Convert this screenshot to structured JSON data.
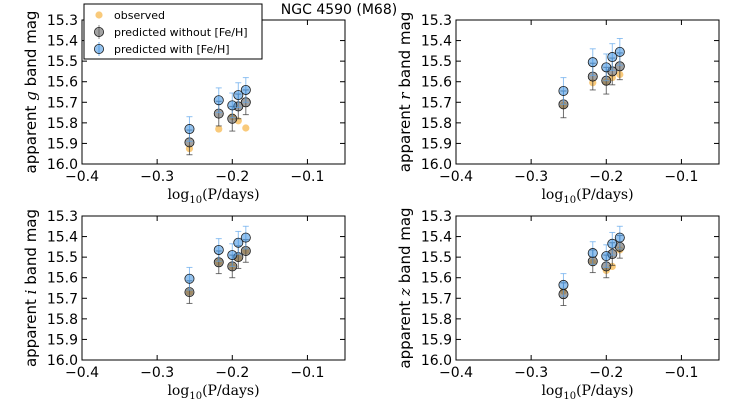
{
  "chart_data": {
    "title": "NGC 4590 (M68)",
    "type": "scatter",
    "xlabel": "log10(P/days)",
    "xlabel_parts": {
      "prefix": "log",
      "sub": "10",
      "suffix": "(P/days)"
    },
    "xlim": [
      -0.4,
      -0.05
    ],
    "ylim": [
      16.0,
      15.3
    ],
    "xticks": [
      -0.4,
      -0.3,
      -0.2,
      -0.1
    ],
    "xtick_labels": [
      "−0.4",
      "−0.3",
      "−0.2",
      "−0.1"
    ],
    "yticks": [
      15.3,
      15.4,
      15.5,
      15.6,
      15.7,
      15.8,
      15.9,
      16.0
    ],
    "ytick_labels": [
      "15.3",
      "15.4",
      "15.5",
      "15.6",
      "15.7",
      "15.8",
      "15.9",
      "16.0"
    ],
    "legend": {
      "location": "top-left",
      "entries": [
        {
          "name": "observed",
          "color": "#f5a623"
        },
        {
          "name": "predicted without [Fe/H]",
          "color": "#555555"
        },
        {
          "name": "predicted with [Fe/H]",
          "color": "#3c8fe0"
        }
      ]
    },
    "colors": {
      "observed": "#f5a623",
      "without": "#555555",
      "without_err": "#333333",
      "with": "#3c8fe0",
      "with_err": "#62a8ec"
    },
    "panels": [
      {
        "band": "g",
        "ylabel_prefix": "apparent ",
        "ylabel_band": "g",
        "ylabel_suffix": " band mag",
        "has_legend": true,
        "observed": [
          {
            "x": -0.257,
            "y": 15.925
          },
          {
            "x": -0.218,
            "y": 15.83
          },
          {
            "x": -0.2,
            "y": 15.77
          },
          {
            "x": -0.192,
            "y": 15.79
          },
          {
            "x": -0.182,
            "y": 15.825
          }
        ],
        "without": [
          {
            "x": -0.257,
            "y": 15.895,
            "err": 0.06
          },
          {
            "x": -0.218,
            "y": 15.755,
            "err": 0.06
          },
          {
            "x": -0.2,
            "y": 15.78,
            "err": 0.06
          },
          {
            "x": -0.192,
            "y": 15.72,
            "err": 0.06
          },
          {
            "x": -0.182,
            "y": 15.7,
            "err": 0.06
          }
        ],
        "with": [
          {
            "x": -0.257,
            "y": 15.83,
            "err": 0.06
          },
          {
            "x": -0.218,
            "y": 15.69,
            "err": 0.06
          },
          {
            "x": -0.2,
            "y": 15.715,
            "err": 0.06
          },
          {
            "x": -0.192,
            "y": 15.665,
            "err": 0.06
          },
          {
            "x": -0.182,
            "y": 15.64,
            "err": 0.06
          }
        ]
      },
      {
        "band": "r",
        "ylabel_prefix": "apparent ",
        "ylabel_band": "r",
        "ylabel_suffix": " band mag",
        "has_legend": false,
        "observed": [
          {
            "x": -0.257,
            "y": 15.715
          },
          {
            "x": -0.218,
            "y": 15.605
          },
          {
            "x": -0.2,
            "y": 15.6
          },
          {
            "x": -0.192,
            "y": 15.58
          },
          {
            "x": -0.182,
            "y": 15.565
          }
        ],
        "without": [
          {
            "x": -0.257,
            "y": 15.71,
            "err": 0.065
          },
          {
            "x": -0.218,
            "y": 15.575,
            "err": 0.065
          },
          {
            "x": -0.2,
            "y": 15.595,
            "err": 0.065
          },
          {
            "x": -0.192,
            "y": 15.55,
            "err": 0.065
          },
          {
            "x": -0.182,
            "y": 15.525,
            "err": 0.065
          }
        ],
        "with": [
          {
            "x": -0.257,
            "y": 15.645,
            "err": 0.065
          },
          {
            "x": -0.218,
            "y": 15.505,
            "err": 0.065
          },
          {
            "x": -0.2,
            "y": 15.53,
            "err": 0.065
          },
          {
            "x": -0.192,
            "y": 15.48,
            "err": 0.065
          },
          {
            "x": -0.182,
            "y": 15.455,
            "err": 0.065
          }
        ]
      },
      {
        "band": "i",
        "ylabel_prefix": "apparent ",
        "ylabel_band": "i",
        "ylabel_suffix": " band mag",
        "has_legend": false,
        "observed": [
          {
            "x": -0.257,
            "y": 15.67
          },
          {
            "x": -0.218,
            "y": 15.525
          },
          {
            "x": -0.2,
            "y": 15.545
          },
          {
            "x": -0.192,
            "y": 15.505
          },
          {
            "x": -0.182,
            "y": 15.47
          }
        ],
        "without": [
          {
            "x": -0.257,
            "y": 15.67,
            "err": 0.055
          },
          {
            "x": -0.218,
            "y": 15.525,
            "err": 0.055
          },
          {
            "x": -0.2,
            "y": 15.545,
            "err": 0.055
          },
          {
            "x": -0.192,
            "y": 15.5,
            "err": 0.055
          },
          {
            "x": -0.182,
            "y": 15.47,
            "err": 0.055
          }
        ],
        "with": [
          {
            "x": -0.257,
            "y": 15.605,
            "err": 0.055
          },
          {
            "x": -0.218,
            "y": 15.465,
            "err": 0.055
          },
          {
            "x": -0.2,
            "y": 15.49,
            "err": 0.055
          },
          {
            "x": -0.192,
            "y": 15.43,
            "err": 0.055
          },
          {
            "x": -0.182,
            "y": 15.405,
            "err": 0.055
          }
        ]
      },
      {
        "band": "z",
        "ylabel_prefix": "apparent ",
        "ylabel_band": "z",
        "ylabel_suffix": " band mag",
        "has_legend": false,
        "observed": [
          {
            "x": -0.257,
            "y": 15.665
          },
          {
            "x": -0.218,
            "y": 15.525
          },
          {
            "x": -0.2,
            "y": 15.565
          },
          {
            "x": -0.192,
            "y": 15.545
          },
          {
            "x": -0.182,
            "y": 15.465
          }
        ],
        "without": [
          {
            "x": -0.257,
            "y": 15.68,
            "err": 0.055
          },
          {
            "x": -0.218,
            "y": 15.52,
            "err": 0.055
          },
          {
            "x": -0.2,
            "y": 15.545,
            "err": 0.055
          },
          {
            "x": -0.192,
            "y": 15.485,
            "err": 0.055
          },
          {
            "x": -0.182,
            "y": 15.45,
            "err": 0.055
          }
        ],
        "with": [
          {
            "x": -0.257,
            "y": 15.635,
            "err": 0.055
          },
          {
            "x": -0.218,
            "y": 15.48,
            "err": 0.055
          },
          {
            "x": -0.2,
            "y": 15.495,
            "err": 0.055
          },
          {
            "x": -0.192,
            "y": 15.435,
            "err": 0.055
          },
          {
            "x": -0.182,
            "y": 15.405,
            "err": 0.055
          }
        ]
      }
    ]
  }
}
